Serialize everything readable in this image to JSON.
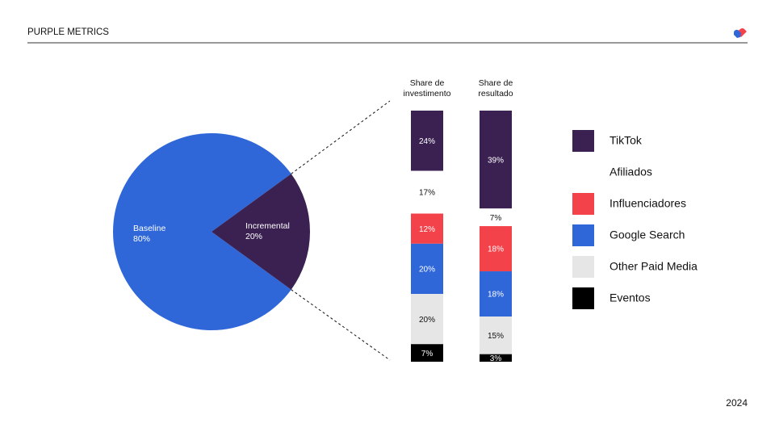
{
  "header": {
    "title": "PURPLE METRICS",
    "year": "2024"
  },
  "chart_data": [
    {
      "type": "pie",
      "categories": [
        "Baseline",
        "Incremental"
      ],
      "values": [
        80,
        20
      ],
      "value_labels": [
        "80%",
        "20%"
      ],
      "colors": [
        "#2f67d8",
        "#3b2152"
      ]
    },
    {
      "type": "stacked_bar",
      "categories": [
        "Share de investimento",
        "Share de resultado"
      ],
      "ylim": [
        0,
        100
      ],
      "series": [
        {
          "name": "TikTok",
          "color": "#3b2152",
          "values": [
            24,
            39
          ],
          "value_labels": [
            "24%",
            "39%"
          ]
        },
        {
          "name": "Afiliados",
          "color": "#ffffff",
          "values": [
            17,
            7
          ],
          "value_labels": [
            "17%",
            "7%"
          ]
        },
        {
          "name": "Influenciadores",
          "color": "#f4424a",
          "values": [
            12,
            18
          ],
          "value_labels": [
            "12%",
            "18%"
          ]
        },
        {
          "name": "Google Search",
          "color": "#2f67d8",
          "values": [
            20,
            18
          ],
          "value_labels": [
            "20%",
            "18%"
          ]
        },
        {
          "name": "Other Paid Media",
          "color": "#e6e6e6",
          "values": [
            20,
            15
          ],
          "value_labels": [
            "20%",
            "15%"
          ]
        },
        {
          "name": "Eventos",
          "color": "#000000",
          "values": [
            7,
            3
          ],
          "value_labels": [
            "7%",
            "3%"
          ]
        }
      ]
    }
  ]
}
